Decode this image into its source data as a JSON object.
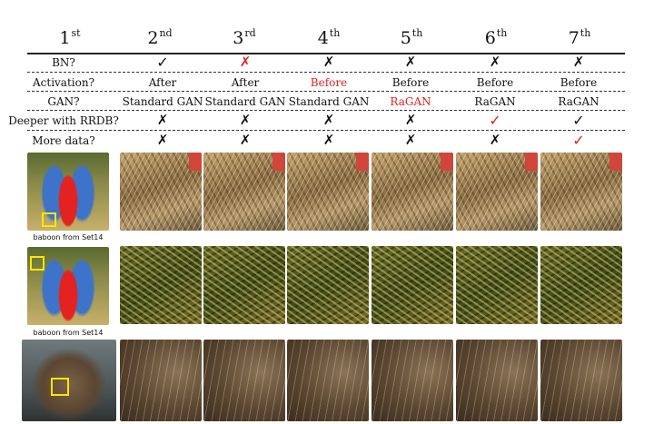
{
  "columns": [
    {
      "num": "1",
      "suffix": "st"
    },
    {
      "num": "2",
      "suffix": "nd"
    },
    {
      "num": "3",
      "suffix": "rd"
    },
    {
      "num": "4",
      "suffix": "th"
    },
    {
      "num": "5",
      "suffix": "th"
    },
    {
      "num": "6",
      "suffix": "th"
    },
    {
      "num": "7",
      "suffix": "th"
    }
  ],
  "rows": {
    "bn": {
      "label": "BN?",
      "marks": [
        "check",
        "cross-red",
        "cross",
        "cross",
        "cross",
        "cross"
      ]
    },
    "activation": {
      "label": "Activation?",
      "values": [
        "After",
        "After",
        "Before",
        "Before",
        "Before",
        "Before"
      ],
      "red_index": 2
    },
    "gan": {
      "label": "GAN?",
      "values": [
        "Standard GAN",
        "Standard GAN",
        "Standard GAN",
        "RaGAN",
        "RaGAN",
        "RaGAN"
      ],
      "red_index": 3
    },
    "rrdb": {
      "label": "Deeper with RRDB?",
      "marks": [
        "cross",
        "cross",
        "cross",
        "cross",
        "check-red",
        "check"
      ]
    },
    "data": {
      "label": "More data?",
      "marks": [
        "cross",
        "cross",
        "cross",
        "cross",
        "cross",
        "check-red"
      ]
    }
  },
  "captions": {
    "row1": "baboon from Set14",
    "row2": "baboon from Set14"
  },
  "glyphs": {
    "check": "✓",
    "cross": "✗"
  },
  "colors": {
    "red": "#e02020",
    "highlight_box": "#ffe600"
  }
}
